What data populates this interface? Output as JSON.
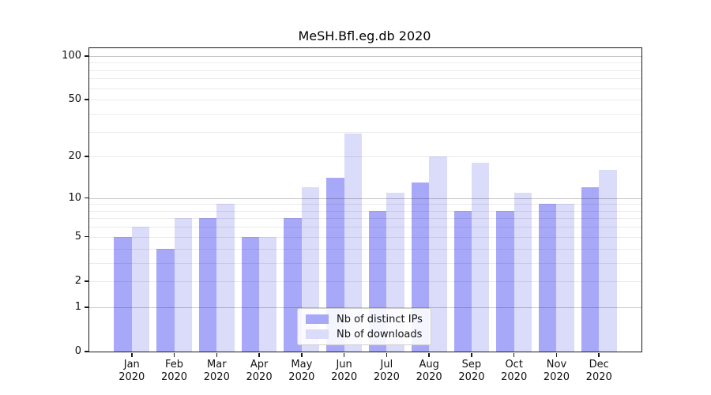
{
  "chart_data": {
    "type": "bar",
    "title": "MeSH.Bfl.eg.db 2020",
    "categories": [
      "Jan",
      "Feb",
      "Mar",
      "Apr",
      "May",
      "Jun",
      "Jul",
      "Aug",
      "Sep",
      "Oct",
      "Nov",
      "Dec"
    ],
    "category_year": "2020",
    "series": [
      {
        "name": "Nb of distinct IPs",
        "color": "#a8a8f8",
        "values": [
          5,
          4,
          7,
          5,
          7,
          14,
          8,
          13,
          8,
          8,
          9,
          12
        ]
      },
      {
        "name": "Nb of downloads",
        "color": "#dbdbfa",
        "values": [
          6,
          7,
          9,
          5,
          12,
          29,
          11,
          20,
          18,
          11,
          9,
          16
        ]
      }
    ],
    "xlabel": "",
    "ylabel": "",
    "yscale": "log1p",
    "ylim": [
      0,
      113
    ],
    "ytick_labels": [
      0,
      1,
      2,
      5,
      10,
      20,
      50,
      100
    ],
    "grid_major": [
      1,
      10,
      100
    ],
    "grid_minor": [
      2,
      3,
      4,
      5,
      6,
      7,
      8,
      9,
      20,
      30,
      40,
      50,
      60,
      70,
      80,
      90
    ],
    "grid": "on",
    "legend_position": "bottom-center"
  },
  "colors": {
    "spine": "#1a1a1a",
    "grid_major": "#c7c7c7",
    "grid_minor": "#ebebeb",
    "background": "#ffffff"
  }
}
